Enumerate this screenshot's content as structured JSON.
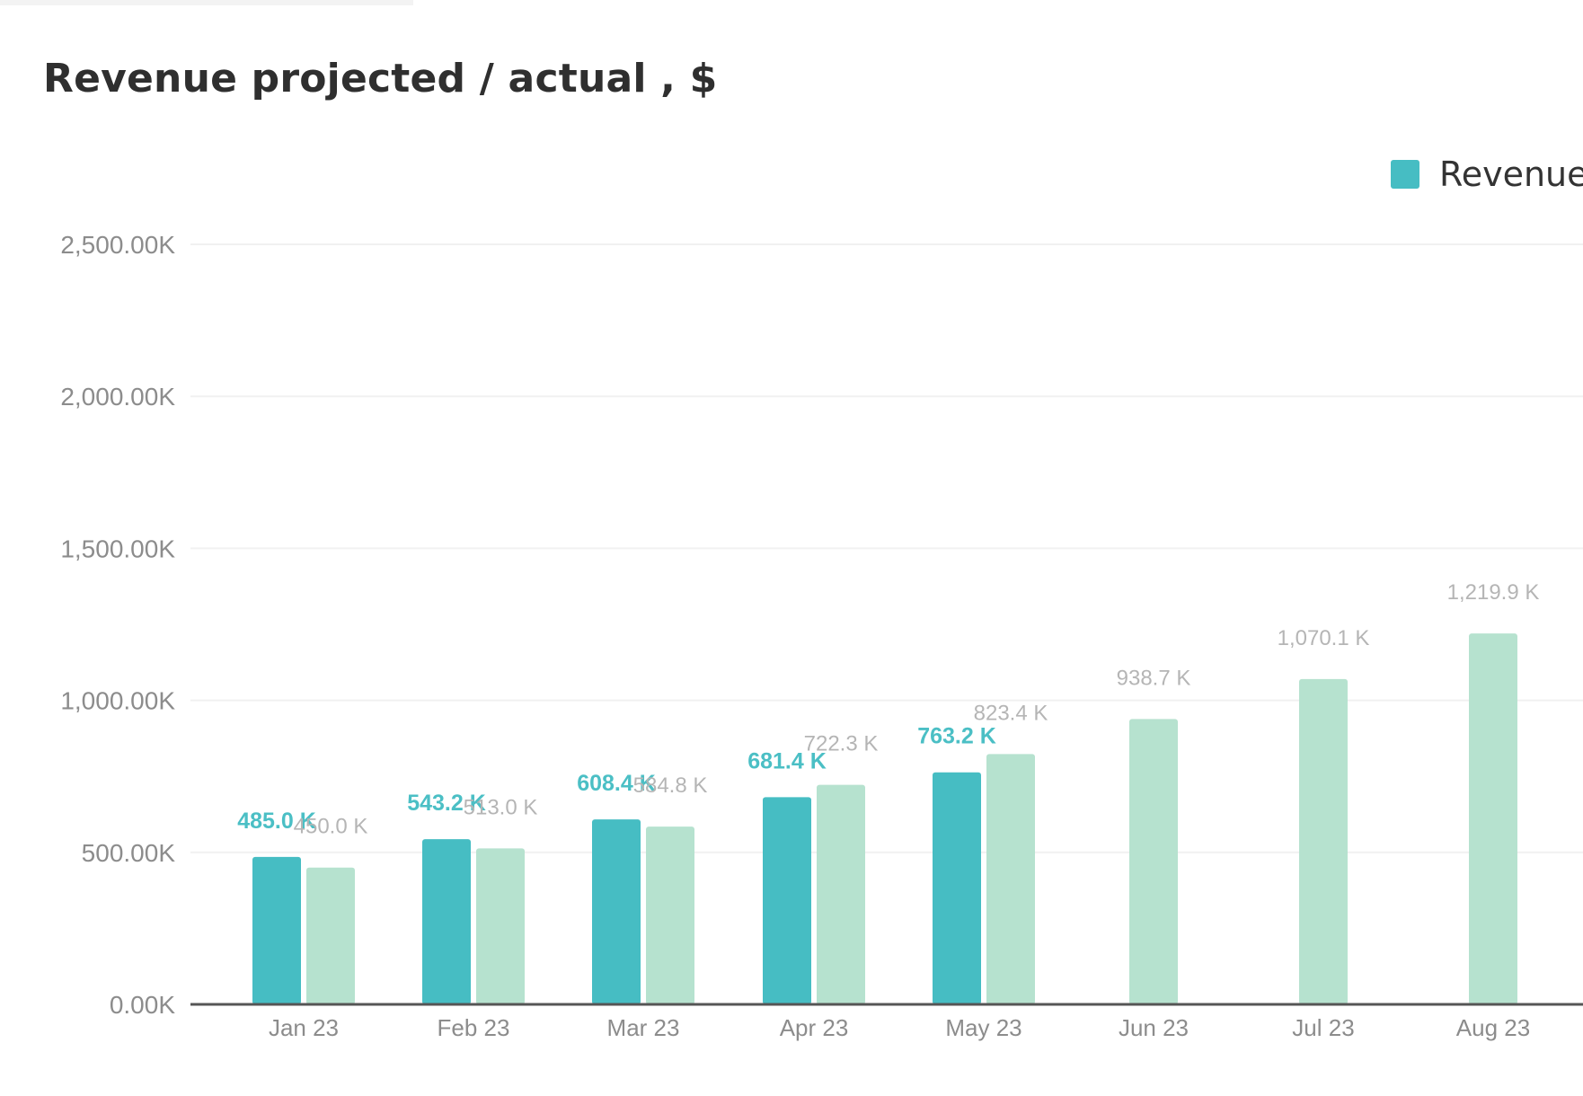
{
  "title": "Revenue projected / actual , $",
  "legend": {
    "label": "Revenue",
    "placement": "top-right"
  },
  "colors": {
    "actual": "#46bdc3",
    "projected": "#b6e2cf",
    "axis": "#555555",
    "grid": "#f1f1f1"
  },
  "chart_data": {
    "type": "bar",
    "title": "Revenue projected / actual , $",
    "xlabel": "",
    "ylabel": "",
    "categories": [
      "Jan 23",
      "Feb 23",
      "Mar 23",
      "Apr 23",
      "May 23",
      "Jun 23",
      "Jul 23",
      "Aug 23"
    ],
    "y_ticks": [
      0,
      500,
      1000,
      1500,
      2000,
      2500
    ],
    "y_tick_labels": [
      "0.00K",
      "500.00K",
      "1,000.00K",
      "1,500.00K",
      "2,000.00K",
      "2,500.00K"
    ],
    "ylim": [
      0,
      2500
    ],
    "grid": true,
    "series": [
      {
        "name": "Revenue",
        "values": [
          485.0,
          543.2,
          608.4,
          681.4,
          763.2,
          null,
          null,
          null
        ],
        "labels": [
          "485.0 K",
          "543.2 K",
          "608.4 K",
          "681.4 K",
          "763.2 K",
          "",
          "",
          ""
        ]
      },
      {
        "values": [
          450.0,
          513.0,
          584.8,
          722.3,
          823.4,
          938.7,
          1070.1,
          1219.9
        ],
        "labels": [
          "450.0 K",
          "513.0 K",
          "584.8 K",
          "722.3 K",
          "823.4 K",
          "938.7 K",
          "1,070.1 K",
          "1,219.9 K"
        ]
      }
    ]
  }
}
